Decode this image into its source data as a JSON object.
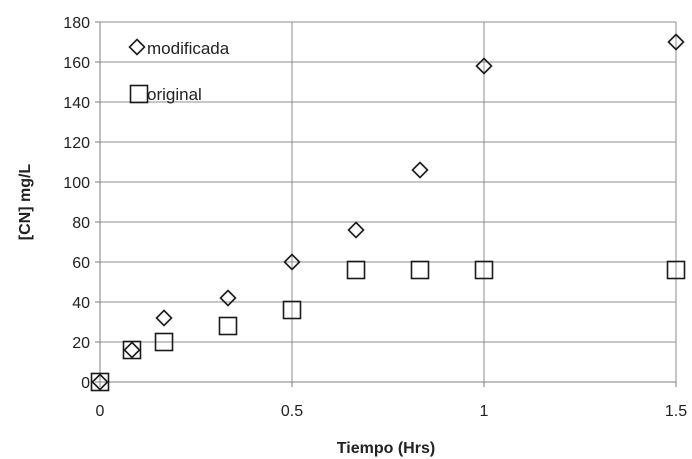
{
  "chart_data": {
    "type": "scatter",
    "title": "",
    "xlabel": "Tiempo (Hrs)",
    "ylabel": "[CN] mg/L",
    "xlim": [
      0,
      1.5
    ],
    "ylim": [
      0,
      180
    ],
    "xticks": [
      0,
      0.5,
      1,
      1.5
    ],
    "xtick_labels": [
      "0",
      "0.5",
      "1",
      "1.5"
    ],
    "yticks": [
      0,
      20,
      40,
      60,
      80,
      100,
      120,
      140,
      160,
      180
    ],
    "ytick_labels": [
      "0",
      "20",
      "40",
      "60",
      "80",
      "100",
      "120",
      "140",
      "160",
      "180"
    ],
    "grid": true,
    "legend_position": "top-left",
    "series": [
      {
        "name": "modificada",
        "marker": "diamond",
        "x": [
          0,
          0.0833,
          0.1667,
          0.3333,
          0.5,
          0.6667,
          0.8333,
          1,
          1.5
        ],
        "y": [
          0,
          16,
          32,
          42,
          60,
          76,
          106,
          158,
          170
        ]
      },
      {
        "name": "original",
        "marker": "square",
        "x": [
          0,
          0.0833,
          0.1667,
          0.3333,
          0.5,
          0.6667,
          0.8333,
          1,
          1.5
        ],
        "y": [
          0,
          16,
          20,
          28,
          36,
          56,
          56,
          56,
          56
        ]
      }
    ]
  },
  "colors": {
    "marker_stroke": "#1a1a1a",
    "grid": "#8c8c8c",
    "axis": "#7f7f7f",
    "text": "#222222"
  }
}
